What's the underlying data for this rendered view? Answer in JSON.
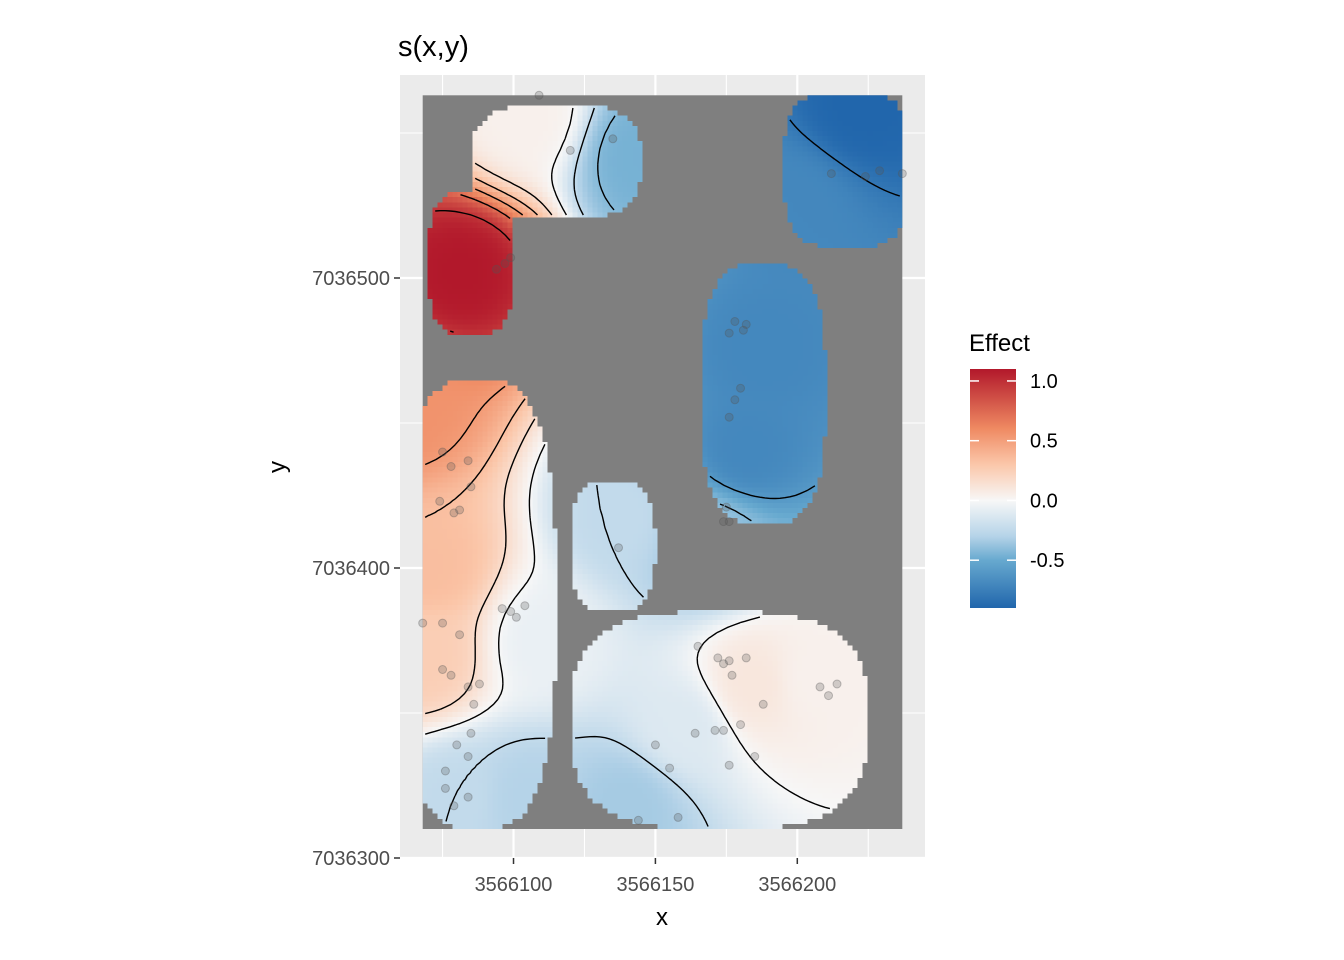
{
  "chart_data": {
    "type": "heatmap",
    "title": "s(x,y)",
    "xlabel": "x",
    "ylabel": "y",
    "xlim": [
      3566060,
      3566245
    ],
    "ylim": [
      7036300,
      7036570
    ],
    "x_ticks": [
      3566100,
      3566150,
      3566200
    ],
    "x_tick_labels": [
      "3566100",
      "3566150",
      "3566200"
    ],
    "y_ticks": [
      7036300,
      7036400,
      7036500
    ],
    "y_tick_labels": [
      "7036300",
      "7036400",
      "7036500"
    ],
    "grid": true,
    "legend": {
      "title": "Effect",
      "placement": "right",
      "range": [
        -0.9,
        1.1
      ],
      "ticks": [
        1.0,
        0.5,
        0.0,
        -0.5
      ],
      "tick_labels": [
        "1.0",
        "0.5",
        "0.0",
        "-0.5"
      ]
    },
    "colors": {
      "panel_background": "#ebebeb",
      "no_data": "#7f7f7f",
      "grid": "#ffffff",
      "low": "#2166ac",
      "mid": "#f7f7f7",
      "high": "#b2182b",
      "contour": "#000000",
      "point": "#555555"
    },
    "regions": [
      {
        "x": [
          3566085,
          3566145
        ],
        "y": [
          7036520,
          7036560
        ]
      },
      {
        "x": [
          3566070,
          3566100
        ],
        "y": [
          7036480,
          7036530
        ]
      },
      {
        "x": [
          3566195,
          3566240
        ],
        "y": [
          7036510,
          7036565
        ]
      },
      {
        "x": [
          3566166,
          3566210
        ],
        "y": [
          7036415,
          7036505
        ]
      },
      {
        "x": [
          3566060,
          3566115
        ],
        "y": [
          7036310,
          7036465
        ]
      },
      {
        "x": [
          3566120,
          3566150
        ],
        "y": [
          7036385,
          7036430
        ]
      },
      {
        "x": [
          3566120,
          3566225
        ],
        "y": [
          7036310,
          7036385
        ]
      }
    ],
    "extrema": [
      {
        "x": 3566082,
        "y": 7036502,
        "value": 1.1
      },
      {
        "x": 3566105,
        "y": 7036556,
        "value": 0.05
      },
      {
        "x": 3566145,
        "y": 7036542,
        "value": -0.45
      },
      {
        "x": 3566223,
        "y": 7036560,
        "value": -0.9
      },
      {
        "x": 3566198,
        "y": 7036525,
        "value": -0.7
      },
      {
        "x": 3566188,
        "y": 7036475,
        "value": -0.7
      },
      {
        "x": 3566182,
        "y": 7036440,
        "value": -0.7
      },
      {
        "x": 3566170,
        "y": 7036410,
        "value": -0.35
      },
      {
        "x": 3566060,
        "y": 7036455,
        "value": 0.65
      },
      {
        "x": 3566070,
        "y": 7036400,
        "value": 0.4
      },
      {
        "x": 3566068,
        "y": 7036370,
        "value": 0.3
      },
      {
        "x": 3566110,
        "y": 7036375,
        "value": -0.05
      },
      {
        "x": 3566080,
        "y": 7036320,
        "value": -0.2
      },
      {
        "x": 3566105,
        "y": 7036320,
        "value": -0.25
      },
      {
        "x": 3566138,
        "y": 7036418,
        "value": -0.2
      },
      {
        "x": 3566185,
        "y": 7036360,
        "value": 0.12
      },
      {
        "x": 3566205,
        "y": 7036362,
        "value": 0.05
      },
      {
        "x": 3566140,
        "y": 7036318,
        "value": -0.3
      },
      {
        "x": 3566160,
        "y": 7036345,
        "value": -0.1
      }
    ],
    "points": [
      [
        3566109,
        7036563
      ],
      [
        3566120,
        7036544
      ],
      [
        3566135,
        7036548
      ],
      [
        3566212,
        7036536
      ],
      [
        3566224,
        7036535
      ],
      [
        3566237,
        7036536
      ],
      [
        3566229,
        7036537
      ],
      [
        3566097,
        7036505
      ],
      [
        3566099,
        7036507
      ],
      [
        3566094,
        7036503
      ],
      [
        3566178,
        7036485
      ],
      [
        3566176,
        7036481
      ],
      [
        3566182,
        7036484
      ],
      [
        3566181,
        7036482
      ],
      [
        3566180,
        7036462
      ],
      [
        3566178,
        7036458
      ],
      [
        3566176,
        7036452
      ],
      [
        3566175,
        7036421
      ],
      [
        3566176,
        7036416
      ],
      [
        3566174,
        7036416
      ],
      [
        3566075,
        7036440
      ],
      [
        3566078,
        7036435
      ],
      [
        3566084,
        7036437
      ],
      [
        3566085,
        7036428
      ],
      [
        3566079,
        7036419
      ],
      [
        3566074,
        7036423
      ],
      [
        3566081,
        7036420
      ],
      [
        3566099,
        7036385
      ],
      [
        3566104,
        7036387
      ],
      [
        3566101,
        7036383
      ],
      [
        3566096,
        7036386
      ],
      [
        3566068,
        7036381
      ],
      [
        3566075,
        7036381
      ],
      [
        3566081,
        7036377
      ],
      [
        3566075,
        7036365
      ],
      [
        3566078,
        7036363
      ],
      [
        3566084,
        7036359
      ],
      [
        3566088,
        7036360
      ],
      [
        3566086,
        7036353
      ],
      [
        3566085,
        7036343
      ],
      [
        3566080,
        7036339
      ],
      [
        3566076,
        7036330
      ],
      [
        3566084,
        7036335
      ],
      [
        3566084,
        7036321
      ],
      [
        3566076,
        7036324
      ],
      [
        3566079,
        7036318
      ],
      [
        3566137,
        7036407
      ],
      [
        3566165,
        7036373
      ],
      [
        3566172,
        7036369
      ],
      [
        3566176,
        7036368
      ],
      [
        3566182,
        7036369
      ],
      [
        3566174,
        7036367
      ],
      [
        3566177,
        7036363
      ],
      [
        3566208,
        7036359
      ],
      [
        3566211,
        7036356
      ],
      [
        3566214,
        7036360
      ],
      [
        3566188,
        7036353
      ],
      [
        3566180,
        7036346
      ],
      [
        3566174,
        7036344
      ],
      [
        3566171,
        7036344
      ],
      [
        3566164,
        7036343
      ],
      [
        3566150,
        7036339
      ],
      [
        3566155,
        7036331
      ],
      [
        3566176,
        7036332
      ],
      [
        3566185,
        7036335
      ],
      [
        3566158,
        7036314
      ],
      [
        3566144,
        7036313
      ]
    ]
  }
}
